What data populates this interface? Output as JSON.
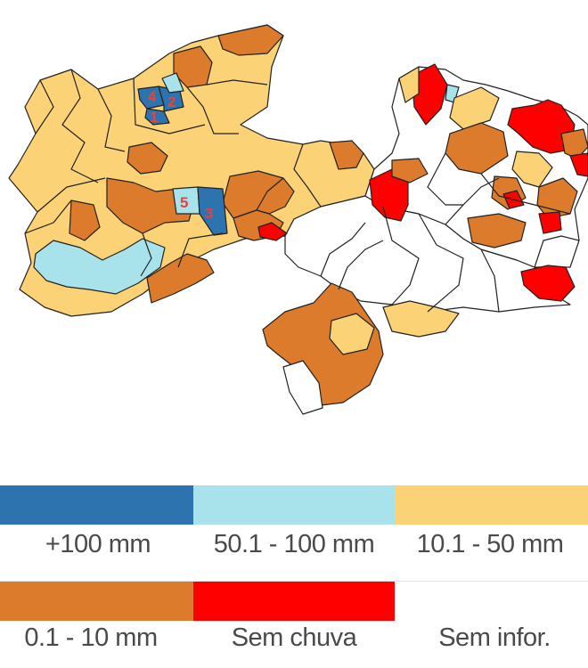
{
  "colors": {
    "over_100": "#2d73b0",
    "r50_100": "#a8e3ec",
    "r10_50": "#fcd276",
    "r0_10": "#dc7b2c",
    "no_rain": "#ff0000",
    "no_info": "#ffffff",
    "outline": "#222222"
  },
  "map_labels": [
    "4",
    "2",
    "1",
    "5",
    "3"
  ],
  "legend": [
    {
      "label": "+100 mm",
      "color": "#2d73b0"
    },
    {
      "label": "50.1 - 100 mm",
      "color": "#a8e3ec"
    },
    {
      "label": "10.1 - 50 mm",
      "color": "#fcd276"
    },
    {
      "label": "0.1 - 10 mm",
      "color": "#dc7b2c"
    },
    {
      "label": "Sem chuva",
      "color": "#ff0000"
    },
    {
      "label": "Sem infor.",
      "color": "#ffffff"
    }
  ]
}
